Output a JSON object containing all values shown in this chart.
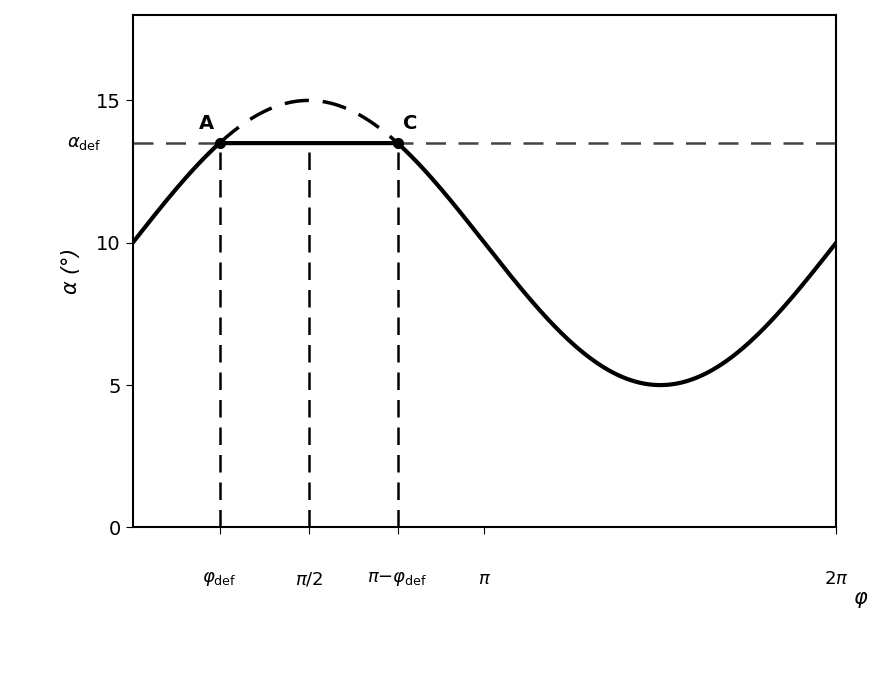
{
  "alpha_mean": 10.0,
  "alpha_amp": 5.0,
  "alpha_def": 13.5,
  "phi_def_deg": 50,
  "ylim": [
    0,
    18
  ],
  "xlim_start": 0,
  "xlim_end": 6.2832,
  "yticks": [
    0,
    5,
    10,
    15
  ],
  "background_color": "#ffffff",
  "line_color": "#000000",
  "dashed_color": "#444444",
  "title": "",
  "ylabel": "$\\alpha$ (°)",
  "xlabel": "$\\varphi$"
}
